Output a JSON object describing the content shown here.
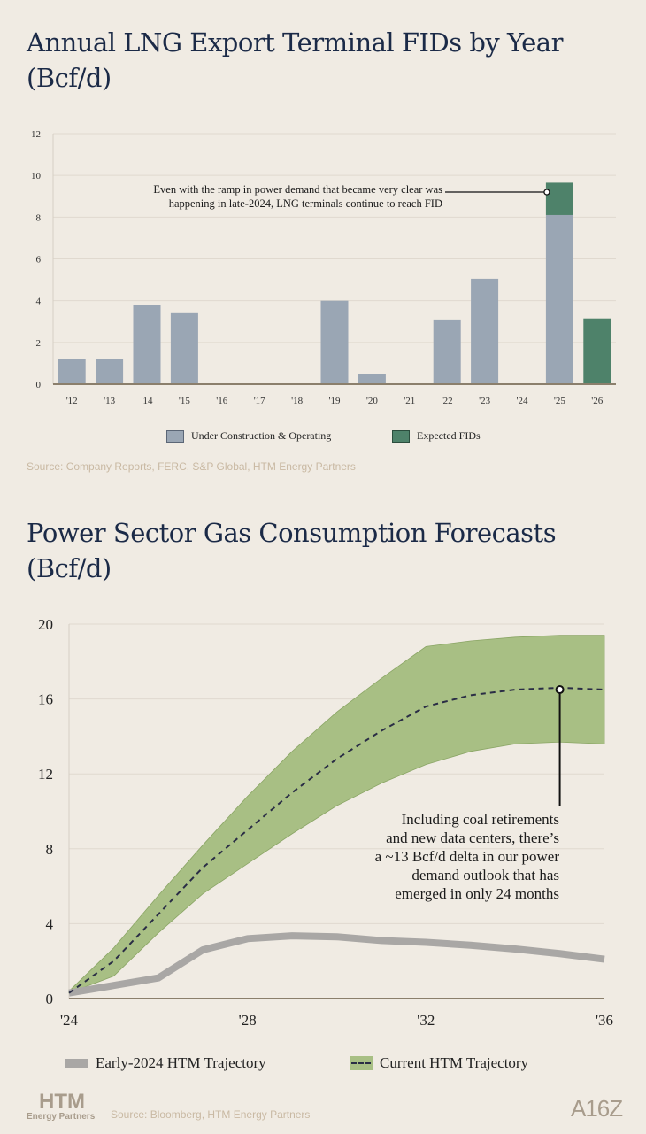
{
  "chart_data": [
    {
      "type": "bar",
      "title": "Annual LNG Export Terminal FIDs by Year (Bcf/d)",
      "categories": [
        "'12",
        "'13",
        "'14",
        "'15",
        "'16",
        "'17",
        "'18",
        "'19",
        "'20",
        "'21",
        "'22",
        "'23",
        "'24",
        "'25",
        "'26"
      ],
      "series": [
        {
          "name": "Under Construction & Operating",
          "color": "#9aa6b4",
          "values": [
            1.2,
            1.2,
            3.8,
            3.4,
            0,
            0,
            0,
            4.0,
            0.5,
            0,
            3.1,
            5.05,
            0,
            8.1,
            0
          ]
        },
        {
          "name": "Expected FIDs",
          "color": "#4e826a",
          "values": [
            0,
            0,
            0,
            0,
            0,
            0,
            0,
            0,
            0,
            0,
            0,
            0,
            0,
            1.55,
            3.15
          ]
        }
      ],
      "stacked": true,
      "ylim": [
        0,
        12
      ],
      "yticks": [
        0,
        2,
        4,
        6,
        8,
        10,
        12
      ],
      "grid": true,
      "legend": "bottom",
      "annotation": {
        "line1": "Even with the ramp in power demand that became very clear was",
        "line2": "happening in late-2024, LNG terminals continue to reach FID",
        "target_category": "'25",
        "target_value": 9.2
      },
      "source": "Source: Company Reports, FERC, S&P Global, HTM Energy Partners"
    },
    {
      "type": "area",
      "title": "Power Sector Gas Consumption Forecasts (Bcf/d)",
      "x": [
        2024,
        2025,
        2026,
        2027,
        2028,
        2029,
        2030,
        2031,
        2032,
        2033,
        2034,
        2035,
        2036
      ],
      "xticks": [
        "'24",
        "'28",
        "'32",
        "'36"
      ],
      "xtick_values": [
        2024,
        2028,
        2032,
        2036
      ],
      "series": [
        {
          "name": "Early-2024 HTM Trajectory",
          "color": "#a9a7a5",
          "values": [
            0.3,
            0.7,
            1.1,
            2.6,
            3.2,
            3.35,
            3.3,
            3.1,
            3.0,
            2.85,
            2.65,
            2.4,
            2.1
          ]
        },
        {
          "name": "Current HTM Trajectory",
          "color": "#2a2d45",
          "band_color": "#a8bf84",
          "values": [
            0.3,
            2.0,
            4.5,
            7.0,
            9.0,
            11.0,
            12.8,
            14.3,
            15.6,
            16.2,
            16.5,
            16.6,
            16.5
          ],
          "upper": [
            0.4,
            2.7,
            5.5,
            8.2,
            10.8,
            13.2,
            15.3,
            17.1,
            18.8,
            19.1,
            19.3,
            19.4,
            19.4
          ],
          "lower": [
            0.3,
            1.2,
            3.5,
            5.6,
            7.2,
            8.8,
            10.3,
            11.5,
            12.5,
            13.2,
            13.6,
            13.7,
            13.6
          ]
        }
      ],
      "ylim": [
        0,
        20
      ],
      "yticks": [
        0,
        4,
        8,
        12,
        16,
        20
      ],
      "grid": true,
      "legend": "bottom",
      "annotation": {
        "lines": [
          "Including coal retirements",
          "and new data centers, there’s",
          "a ~13 Bcf/d delta in our power",
          "demand outlook that has",
          "emerged in only 24 months"
        ],
        "target_x": 2035,
        "target_value": 16.5
      },
      "source": "Source: Bloomberg, HTM Energy Partners"
    }
  ],
  "logos": {
    "htm_main": "HTM",
    "htm_sub": "Energy Partners",
    "a16z": "A16Z"
  }
}
